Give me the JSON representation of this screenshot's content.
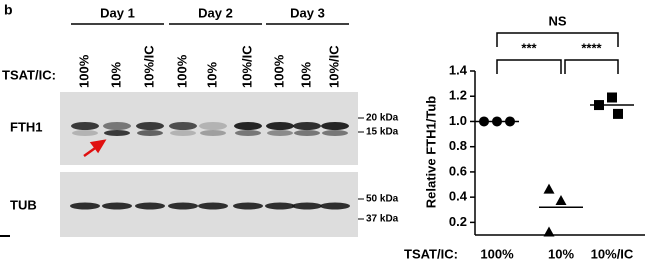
{
  "panel_label": "b",
  "blot": {
    "row_label": "TSAT/IC:",
    "days": [
      "Day 1",
      "Day 2",
      "Day 3"
    ],
    "lanes": [
      "100%",
      "10%",
      "10%/IC",
      "100%",
      "10%",
      "10%/IC",
      "100%",
      "10%",
      "10%/IC"
    ],
    "panels": [
      {
        "label": "FTH1",
        "markers": [
          "20 kDa",
          "15 kDa"
        ]
      },
      {
        "label": "TUB",
        "markers": [
          "50 kDa",
          "37 kDa"
        ]
      }
    ]
  },
  "chart_data": {
    "type": "dot",
    "y_label": "Relative FTH1/Tub",
    "x_label": "TSAT/IC:",
    "categories": [
      "100%",
      "10%",
      "10%/IC"
    ],
    "values": [
      [
        1.0,
        1.0,
        1.0
      ],
      [
        0.46,
        0.37,
        0.12
      ],
      [
        1.19,
        1.13,
        1.06
      ]
    ],
    "means": [
      1.0,
      0.32,
      1.13
    ],
    "markers": [
      "circle",
      "triangle",
      "square"
    ],
    "color": "#000000",
    "ylim": [
      0.1,
      1.4
    ],
    "yticks": [
      0.2,
      0.4,
      0.6,
      0.8,
      {
        "value": 1.0,
        "label": "1.0"
      },
      1.2,
      1.4
    ],
    "comparisons": [
      {
        "label": "***",
        "pair": [
          0,
          1
        ]
      },
      {
        "label": "****",
        "pair": [
          1,
          2
        ]
      },
      {
        "label": "NS",
        "pair": [
          0,
          2
        ]
      }
    ]
  }
}
